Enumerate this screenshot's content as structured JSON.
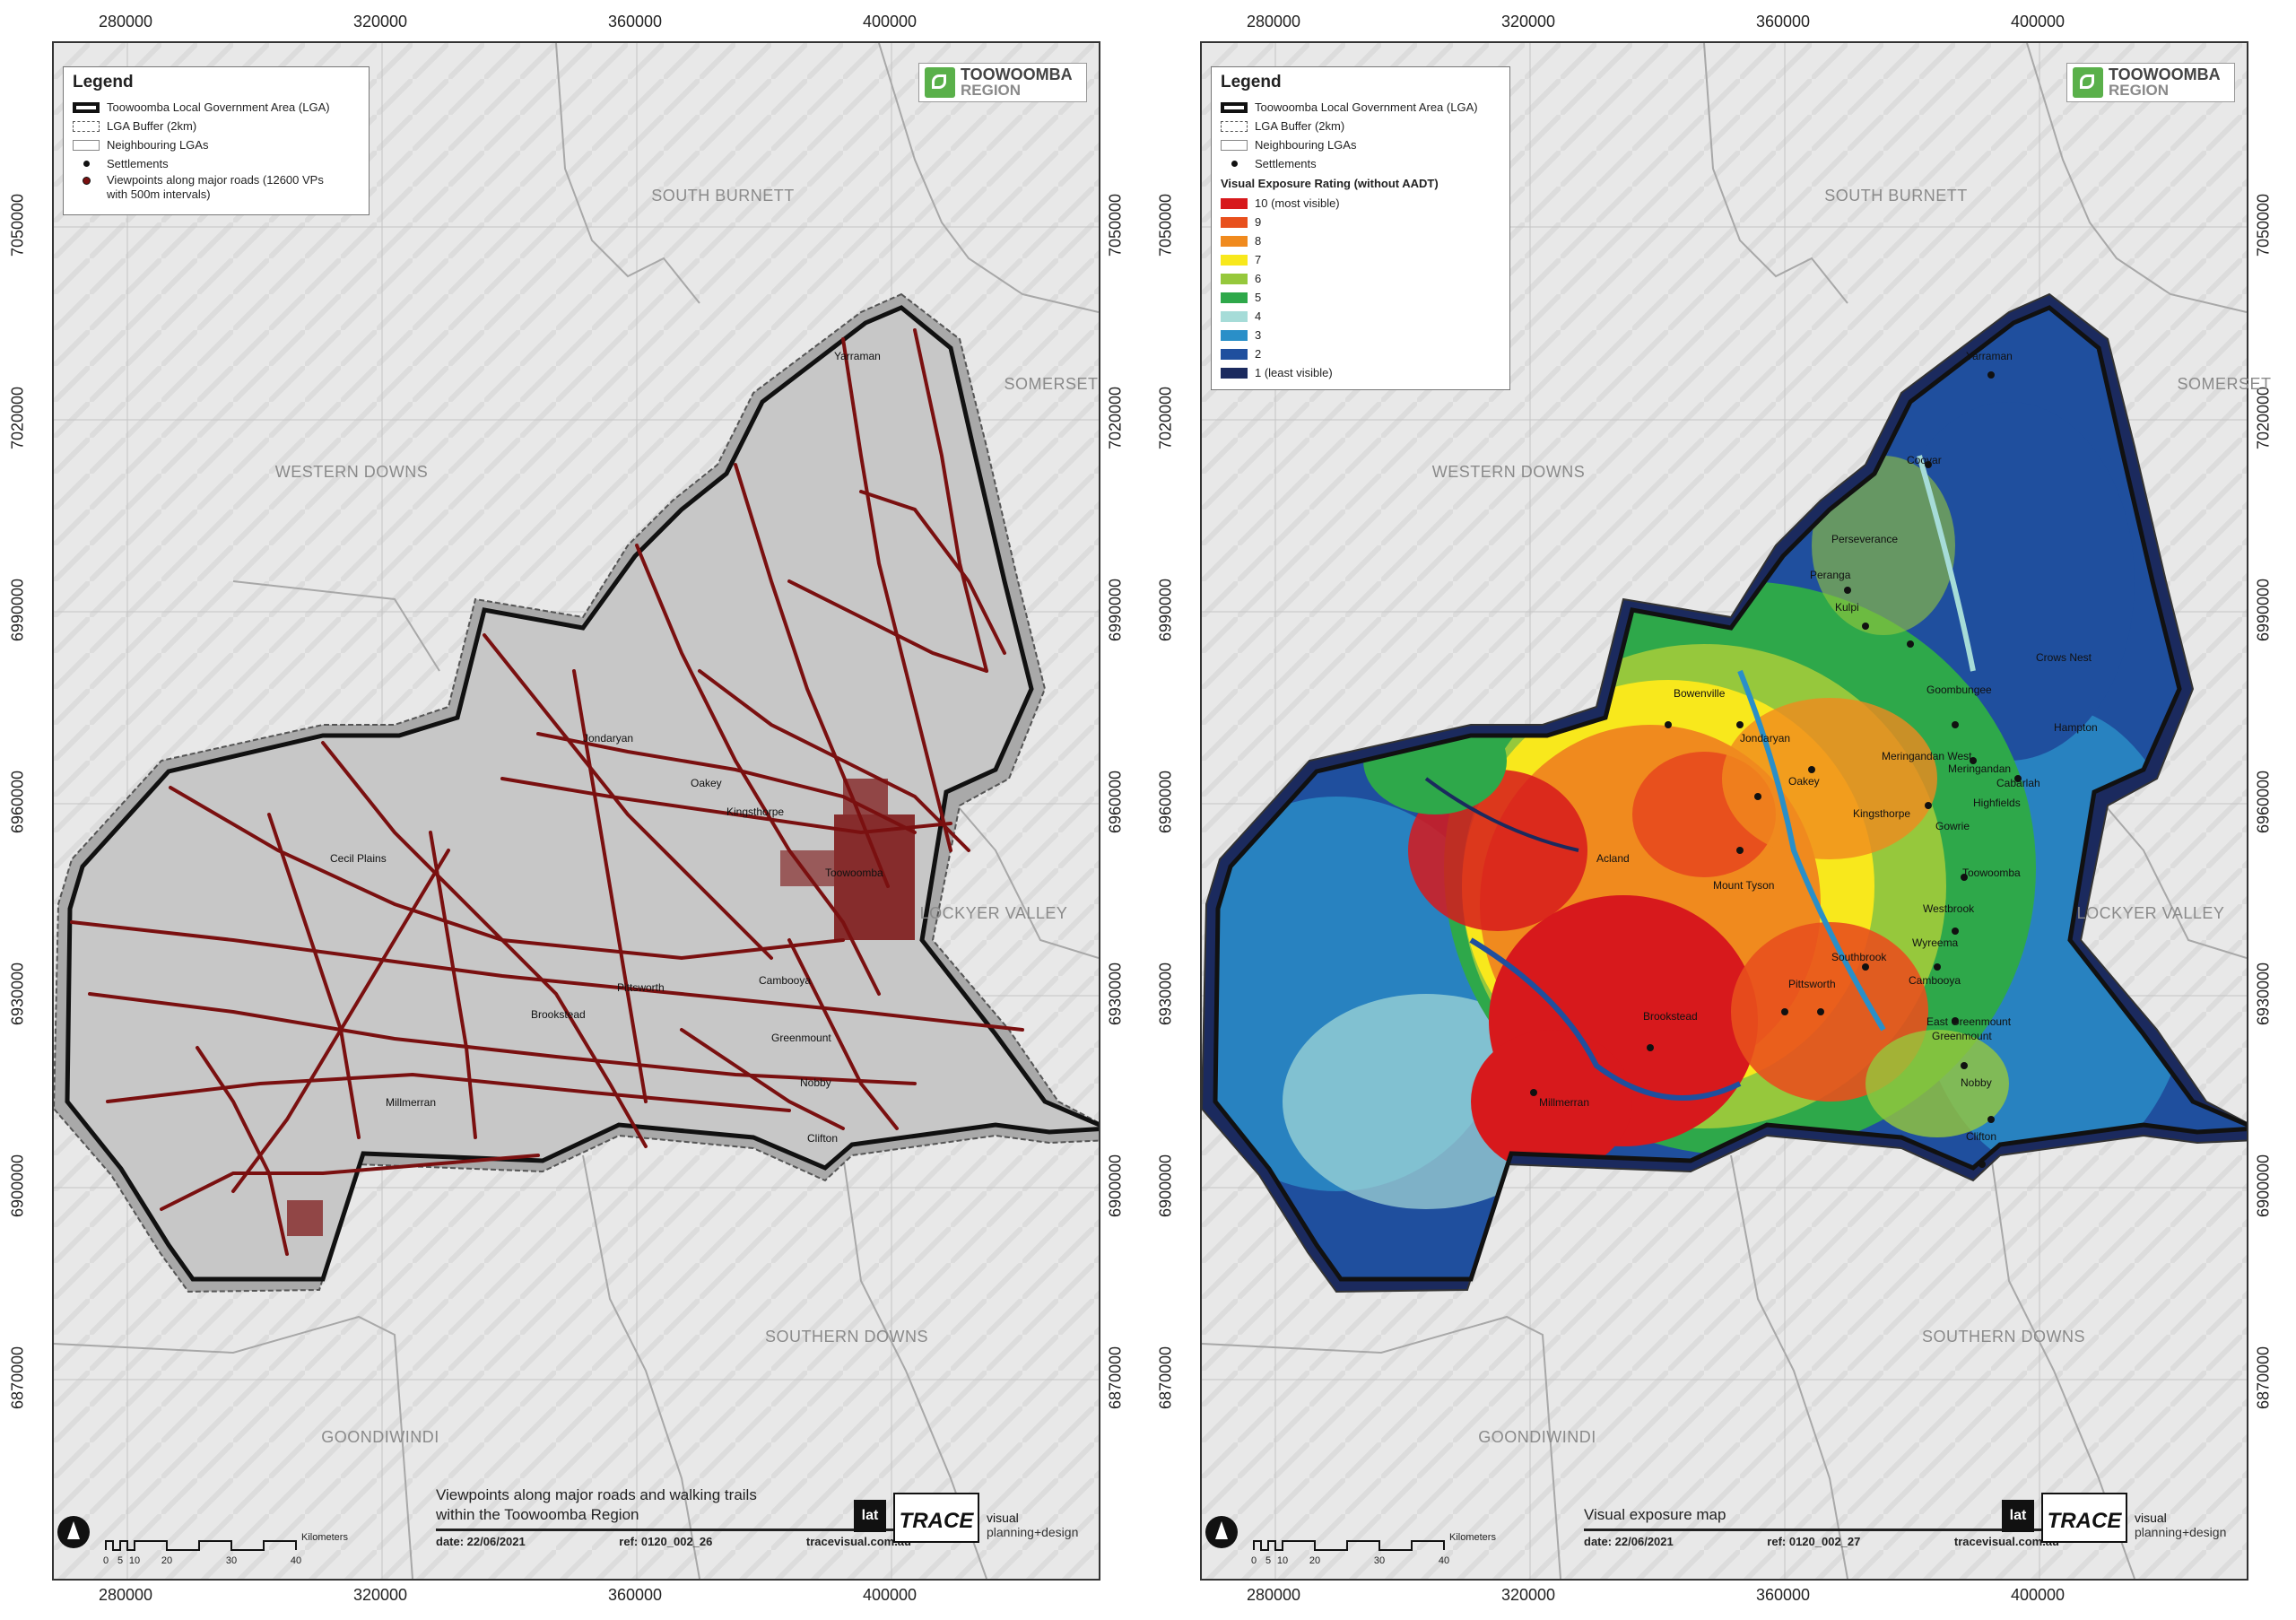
{
  "grid": {
    "x_ticks": [
      "280000",
      "320000",
      "360000",
      "400000"
    ],
    "y_ticks": [
      "7050000",
      "7020000",
      "6990000",
      "6960000",
      "6930000",
      "6900000",
      "6870000"
    ]
  },
  "neighbouring_lgas": [
    "SOUTH BURNETT",
    "SOMERSET",
    "WESTERN DOWNS",
    "LOCKYER VALLEY",
    "SOUTHERN DOWNS",
    "GOONDIWINDI"
  ],
  "logo": {
    "line1": "TOOWOOMBA",
    "line2": "REGION"
  },
  "trace_logo": {
    "box1": "lat",
    "box2": "TRACE",
    "sub1": "visual",
    "sub2": "planning+design"
  },
  "scale_bar": {
    "labels": [
      "0",
      "5",
      "10",
      "20",
      "30",
      "40"
    ],
    "unit": "Kilometers"
  },
  "left_map": {
    "legend": {
      "title": "Legend",
      "items": [
        "Toowoomba Local Government Area (LGA)",
        "LGA Buffer (2km)",
        "Neighbouring LGAs",
        "Settlements",
        "Viewpoints along major roads (12600 VPs with 500m intervals)"
      ]
    },
    "title_line1": "Viewpoints along major roads and walking trails",
    "title_line2": "within the Toowoomba Region",
    "date": "date: 22/06/2021",
    "ref": "ref: 0120_002_26",
    "website": "tracevisual.com.au",
    "settlements": [
      "Yarraman",
      "Jondaryan",
      "Oakey",
      "Cecil Plains",
      "Pittsworth",
      "Brookstead",
      "Millmerran",
      "Cambooya",
      "Greenmount",
      "Nobby",
      "Clifton",
      "Toowoomba",
      "Kingsthorpe"
    ]
  },
  "right_map": {
    "legend": {
      "title": "Legend",
      "items": [
        "Toowoomba Local Government Area (LGA)",
        "LGA Buffer (2km)",
        "Neighbouring LGAs",
        "Settlements"
      ],
      "rating_title": "Visual Exposure Rating (without AADT)",
      "ratings": [
        {
          "label": "10 (most visible)",
          "color": "#d7191c"
        },
        {
          "label": "9",
          "color": "#e8501d"
        },
        {
          "label": "8",
          "color": "#f08a1e"
        },
        {
          "label": "7",
          "color": "#f8e81c"
        },
        {
          "label": "6",
          "color": "#96c83c"
        },
        {
          "label": "5",
          "color": "#2ea84a"
        },
        {
          "label": "4",
          "color": "#a6dcd8"
        },
        {
          "label": "3",
          "color": "#2a8fc8"
        },
        {
          "label": "2",
          "color": "#1f4f9e"
        },
        {
          "label": "1 (least visible)",
          "color": "#1b2a5e"
        }
      ]
    },
    "title_line1": "Visual exposure map",
    "date": "date: 22/06/2021",
    "ref": "ref: 0120_002_27",
    "website": "tracevisual.com.au",
    "settlements": [
      "Yarraman",
      "Cooyar",
      "Perseverance",
      "Peranga",
      "Kulpi",
      "Goombungee",
      "Crows Nest",
      "Bowenville",
      "Jondaryan",
      "Meringandan West",
      "Meringandan",
      "Hampton",
      "Oakey",
      "Cabarlah",
      "Highfields",
      "Kingsthorpe",
      "Gowrie",
      "Acland",
      "Mount Tyson",
      "Toowoomba",
      "Westbrook",
      "Wyreema",
      "Southbrook",
      "Cambooya",
      "Pittsworth",
      "Brookstead",
      "East Greenmount",
      "Greenmount",
      "Millmerran",
      "Nobby",
      "Clifton"
    ]
  }
}
